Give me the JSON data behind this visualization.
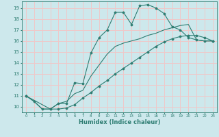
{
  "xlabel": "Humidex (Indice chaleur)",
  "bg_color": "#cde8ec",
  "grid_color": "#f0c8c8",
  "line_color": "#2e7d72",
  "xlim": [
    -0.5,
    23.5
  ],
  "ylim": [
    9.5,
    19.6
  ],
  "xticks": [
    0,
    1,
    2,
    3,
    4,
    5,
    6,
    7,
    8,
    9,
    10,
    11,
    12,
    13,
    14,
    15,
    16,
    17,
    18,
    19,
    20,
    21,
    22,
    23
  ],
  "yticks": [
    10,
    11,
    12,
    13,
    14,
    15,
    16,
    17,
    18,
    19
  ],
  "curve1_x": [
    0,
    1,
    2,
    3,
    4,
    5,
    6,
    7,
    8,
    9,
    10,
    11,
    12,
    13,
    14,
    15,
    16,
    17,
    18,
    19,
    20,
    21,
    22,
    23
  ],
  "curve1_y": [
    11.0,
    10.5,
    9.8,
    9.8,
    10.3,
    10.3,
    12.2,
    12.1,
    14.9,
    16.3,
    17.0,
    18.6,
    18.6,
    17.5,
    19.2,
    19.3,
    19.0,
    18.5,
    17.3,
    17.0,
    16.3,
    16.1,
    16.0,
    16.0
  ],
  "curve2_x": [
    0,
    3,
    4,
    5,
    6,
    7,
    8,
    9,
    10,
    11,
    12,
    13,
    14,
    15,
    16,
    17,
    18,
    19,
    20,
    21,
    22,
    23
  ],
  "curve2_y": [
    11.0,
    9.8,
    9.8,
    9.9,
    10.2,
    10.8,
    11.3,
    11.9,
    12.4,
    13.0,
    13.5,
    14.0,
    14.5,
    15.0,
    15.5,
    15.9,
    16.2,
    16.4,
    16.5,
    16.5,
    16.3,
    16.0
  ],
  "curve3_x": [
    0,
    1,
    2,
    3,
    4,
    5,
    6,
    7,
    8,
    9,
    10,
    11,
    12,
    13,
    14,
    15,
    16,
    17,
    18,
    19,
    20,
    21,
    22,
    23
  ],
  "curve3_y": [
    11.0,
    10.5,
    9.8,
    9.8,
    10.3,
    10.5,
    11.2,
    11.5,
    12.8,
    13.8,
    14.8,
    15.5,
    15.8,
    16.0,
    16.2,
    16.5,
    16.7,
    17.0,
    17.2,
    17.4,
    17.5,
    16.1,
    16.0,
    16.0
  ]
}
